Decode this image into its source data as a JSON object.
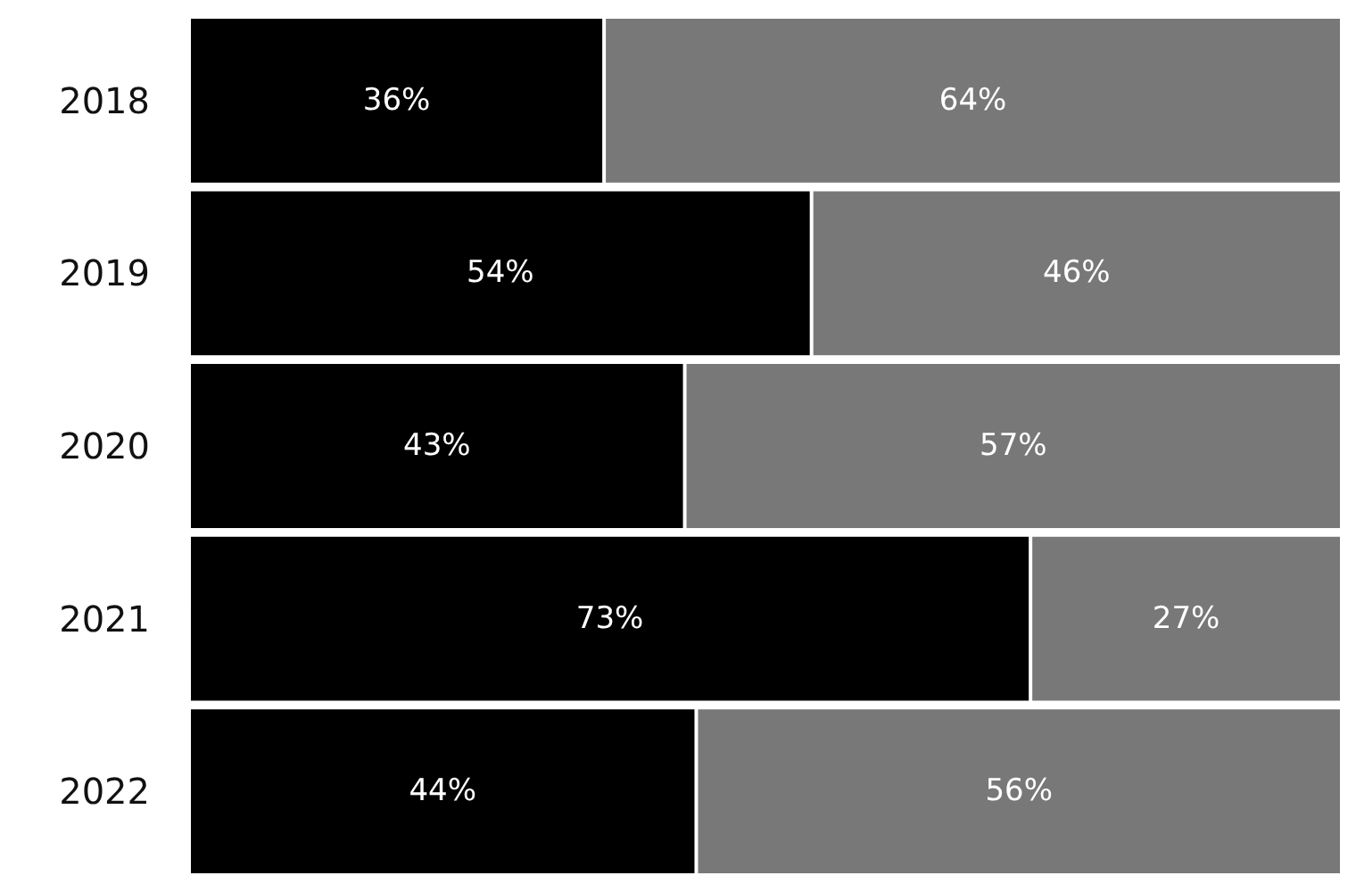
{
  "chart_data": {
    "type": "bar",
    "orientation": "horizontal",
    "stacked": true,
    "tick_labels": "y",
    "grid": false,
    "categories": [
      "2018",
      "2019",
      "2020",
      "2021",
      "2022"
    ],
    "series": [
      {
        "color": "#000000",
        "values": [
          36,
          54,
          43,
          73,
          44
        ],
        "value_labels": [
          "36%",
          "54%",
          "43%",
          "73%",
          "44%"
        ]
      },
      {
        "color": "#787878",
        "values": [
          64,
          46,
          57,
          27,
          56
        ],
        "value_labels": [
          "64%",
          "46%",
          "57%",
          "27%",
          "56%"
        ]
      }
    ]
  }
}
